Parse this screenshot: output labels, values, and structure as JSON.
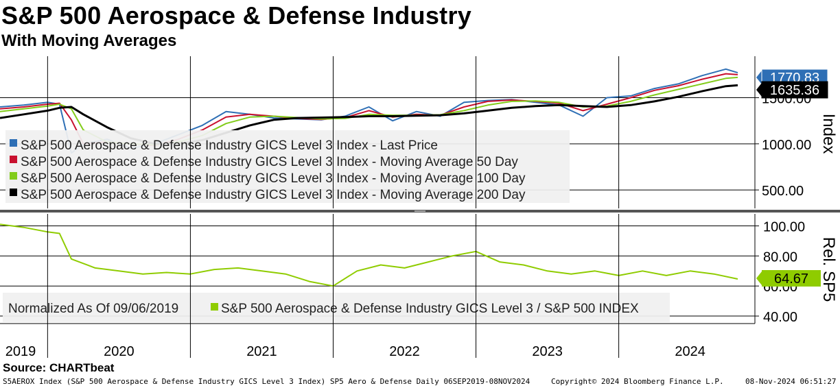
{
  "title": "S&P 500 Aerospace & Defense Industry",
  "subtitle": "With Moving Averages",
  "source": "Source: CHARTbeat",
  "footer": {
    "left": "S5AEROX Index (S&P 500 Aerospace & Defense Industry GICS Level 3 Index) SP5 Aero & Defense  Daily 06SEP2019-08NOV2024",
    "copyright": "Copyright© 2024 Bloomberg Finance L.P.",
    "timestamp": "08-Nov-2024 06:51:27"
  },
  "colors": {
    "last_price": "#2e6fb5",
    "ma50": "#c8102e",
    "ma100": "#82cc1a",
    "ma200": "#000000",
    "relative": "#8fcc00"
  },
  "chart_data": [
    {
      "type": "line",
      "ylabel": "Index",
      "ylim": [
        300,
        1950
      ],
      "yticks": [
        "500.00",
        "1000.00",
        "1500.00"
      ],
      "grid": true,
      "legend_placement": "left",
      "last_value_labels": [
        {
          "series": "last",
          "text": "1770.83"
        },
        {
          "series": "ma200",
          "text": "1635.36"
        }
      ],
      "x": [
        "2019-09",
        "2019-11",
        "2020-01",
        "2020-02",
        "2020-03",
        "2020-04",
        "2020-06",
        "2020-08",
        "2020-10",
        "2020-12",
        "2021-02",
        "2021-04",
        "2021-06",
        "2021-08",
        "2021-10",
        "2021-12",
        "2022-02",
        "2022-04",
        "2022-06",
        "2022-08",
        "2022-10",
        "2022-12",
        "2023-02",
        "2023-04",
        "2023-06",
        "2023-08",
        "2023-10",
        "2023-12",
        "2024-02",
        "2024-04",
        "2024-06",
        "2024-08",
        "2024-10",
        "2024-11"
      ],
      "series": [
        {
          "key": "last",
          "name": "S&P 500 Aerospace & Defense Industry GICS Level 3 Index - Last Price",
          "values": [
            1400,
            1420,
            1450,
            1430,
            900,
            1000,
            1050,
            950,
            1000,
            1100,
            1200,
            1350,
            1320,
            1280,
            1270,
            1260,
            1300,
            1400,
            1250,
            1350,
            1300,
            1450,
            1470,
            1480,
            1450,
            1420,
            1300,
            1500,
            1520,
            1600,
            1650,
            1740,
            1810,
            1771
          ]
        },
        {
          "key": "ma50",
          "name": "S&P 500 Aerospace & Defense Industry GICS Level 3 Index - Moving Average 50 Day",
          "values": [
            1380,
            1400,
            1430,
            1440,
            1260,
            1000,
            1020,
            1000,
            980,
            1050,
            1150,
            1290,
            1320,
            1300,
            1275,
            1265,
            1285,
            1360,
            1290,
            1320,
            1310,
            1400,
            1460,
            1475,
            1460,
            1440,
            1360,
            1430,
            1500,
            1580,
            1630,
            1700,
            1760,
            1750
          ]
        },
        {
          "key": "ma100",
          "name": "S&P 500 Aerospace & Defense Industry GICS Level 3 Index - Moving Average 100 Day",
          "values": [
            1350,
            1380,
            1410,
            1430,
            1380,
            1150,
            1020,
            1000,
            990,
            1020,
            1090,
            1220,
            1290,
            1300,
            1285,
            1270,
            1275,
            1320,
            1310,
            1310,
            1315,
            1360,
            1420,
            1460,
            1465,
            1450,
            1400,
            1410,
            1460,
            1530,
            1590,
            1650,
            1710,
            1720
          ]
        },
        {
          "key": "ma200",
          "name": "S&P 500 Aerospace & Defense Industry GICS Level 3 Index - Moving Average 200 Day",
          "values": [
            1280,
            1320,
            1360,
            1390,
            1400,
            1320,
            1180,
            1060,
            1000,
            1000,
            1040,
            1120,
            1200,
            1260,
            1280,
            1285,
            1290,
            1300,
            1300,
            1305,
            1310,
            1330,
            1360,
            1390,
            1410,
            1420,
            1410,
            1400,
            1420,
            1460,
            1510,
            1570,
            1625,
            1635
          ]
        }
      ]
    },
    {
      "type": "line",
      "ylabel": "Rel. SP5",
      "ylim": [
        35,
        108
      ],
      "yticks": [
        "40.00",
        "60.00",
        "80.00",
        "100.00"
      ],
      "grid": true,
      "legend_placement": "bottom-left",
      "legend_prefix": "Normalized As Of 09/06/2019",
      "last_value_labels": [
        {
          "series": "relative",
          "text": "64.67"
        }
      ],
      "x": [
        "2019-09",
        "2019-11",
        "2020-01",
        "2020-02",
        "2020-03",
        "2020-05",
        "2020-07",
        "2020-09",
        "2020-11",
        "2021-01",
        "2021-03",
        "2021-05",
        "2021-07",
        "2021-09",
        "2021-11",
        "2022-01",
        "2022-03",
        "2022-05",
        "2022-07",
        "2022-09",
        "2022-11",
        "2023-01",
        "2023-03",
        "2023-05",
        "2023-07",
        "2023-09",
        "2023-11",
        "2024-01",
        "2024-03",
        "2024-05",
        "2024-07",
        "2024-09",
        "2024-11"
      ],
      "series": [
        {
          "key": "relative",
          "name": "S&P 500 Aerospace & Defense Industry GICS Level 3 / S&P 500 INDEX",
          "values": [
            101,
            99,
            96,
            95,
            78,
            72,
            70,
            68,
            69,
            68,
            71,
            72,
            70,
            68,
            63,
            60,
            70,
            74,
            72,
            76,
            80,
            83,
            76,
            74,
            70,
            68,
            70,
            67,
            70,
            67,
            70,
            68,
            64.67
          ]
        }
      ]
    }
  ],
  "x_axis": {
    "years": [
      "2019",
      "2020",
      "2021",
      "2022",
      "2023",
      "2024"
    ]
  }
}
